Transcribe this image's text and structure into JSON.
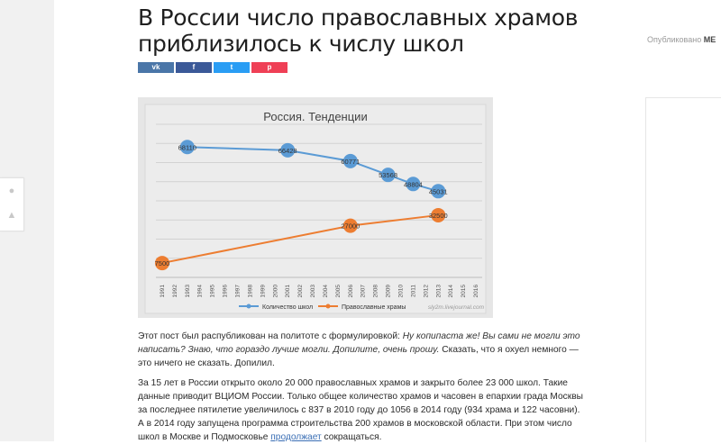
{
  "article": {
    "title_line1": "В России число православных храмов",
    "title_line2": "приблизилось к числу школ",
    "published_prefix": "Опубликовано",
    "published_author": "МЕ",
    "share": [
      {
        "label": "vk",
        "color": "#4a76a8"
      },
      {
        "label": "f",
        "color": "#3b5998"
      },
      {
        "label": "t",
        "color": "#2a9df4"
      },
      {
        "label": "p",
        "color": "#ef4056"
      }
    ],
    "p1_a": "Этот пост был распубликован на политоте с формулировкой: ",
    "p1_quote": "Ну копипаста же! Вы сами не могли это написать? Знаю, что гораздо лучше могли. Допилите, очень прошу.",
    "p1_b": " Сказать, что я охуел немного — это ничего не сказать. Допилил.",
    "p2_a": "За 15 лет в России открыто около 20 000 православных храмов и закрыто более 23 000 школ. Такие данные приводит ВЦИОМ России. Только общее количество храмов и часовен в епархии града Москвы за последнее пятилетие увеличилось с 837 в 2010 году до 1056 в 2014 году (934 храма и 122 часовни). А в 2014 году запущена программа строительства 200 храмов в московской области. При этом число школ в Москве и Подмосковье ",
    "p2_link": "продолжает",
    "p2_b": " сокращаться."
  },
  "chart_data": {
    "type": "line",
    "title": "Россия. Тенденции",
    "x": [
      "1991",
      "1992",
      "1993",
      "1994",
      "1995",
      "1996",
      "1997",
      "1998",
      "1999",
      "2000",
      "2001",
      "2002",
      "2003",
      "2004",
      "2005",
      "2006",
      "2007",
      "2008",
      "2009",
      "2010",
      "2011",
      "2012",
      "2013",
      "2014",
      "2015",
      "2016"
    ],
    "ylim": [
      0,
      80000
    ],
    "grid": true,
    "legend_position": "bottom",
    "watermark": "sly2m.livejournal.com",
    "colors": {
      "schools": "#5b9bd5",
      "temples": "#ed7d31"
    },
    "series": [
      {
        "name": "Количество школ",
        "points": [
          [
            1993,
            68110
          ],
          [
            2001,
            66428
          ],
          [
            2006,
            60771
          ],
          [
            2009,
            53568
          ],
          [
            2011,
            48804
          ],
          [
            2013,
            45031
          ]
        ]
      },
      {
        "name": "Православные храмы",
        "points": [
          [
            1991,
            7500
          ],
          [
            2006,
            27000
          ],
          [
            2013,
            32500
          ]
        ]
      }
    ]
  }
}
